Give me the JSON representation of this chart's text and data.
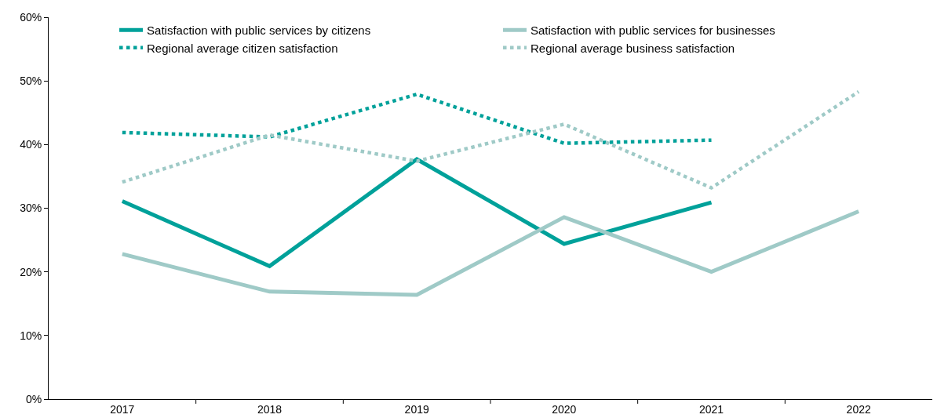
{
  "chart_data": {
    "type": "line",
    "categories": [
      "2017",
      "2018",
      "2019",
      "2020",
      "2021",
      "2022"
    ],
    "series": [
      {
        "name": "Satisfaction with public services by citizens",
        "color": "#00a19a",
        "values": [
          31.1,
          20.9,
          37.7,
          24.4,
          30.9,
          null
        ],
        "line_style": "solid"
      },
      {
        "name": "Satisfaction with public services for businesses",
        "color": "#9fcac7",
        "values": [
          22.8,
          16.9,
          16.4,
          28.6,
          20.0,
          29.5
        ],
        "line_style": "solid"
      },
      {
        "name": "Regional average citizen satisfaction",
        "color": "#00a19a",
        "values": [
          41.9,
          41.2,
          47.9,
          40.2,
          40.7,
          null
        ],
        "line_style": "dotted"
      },
      {
        "name": "Regional average business satisfaction",
        "color": "#9fcac7",
        "values": [
          34.1,
          41.5,
          37.4,
          43.2,
          33.2,
          48.3
        ],
        "line_style": "dotted"
      }
    ],
    "ylim": [
      0,
      60
    ],
    "yticks": [
      {
        "value": 0,
        "label": "0%"
      },
      {
        "value": 10,
        "label": "10%"
      },
      {
        "value": 20,
        "label": "20%"
      },
      {
        "value": 30,
        "label": "30%"
      },
      {
        "value": 40,
        "label": "40%"
      },
      {
        "value": 50,
        "label": "50%"
      },
      {
        "value": 60,
        "label": "60%"
      }
    ],
    "grid": false,
    "legend": "top",
    "marker": "none"
  }
}
